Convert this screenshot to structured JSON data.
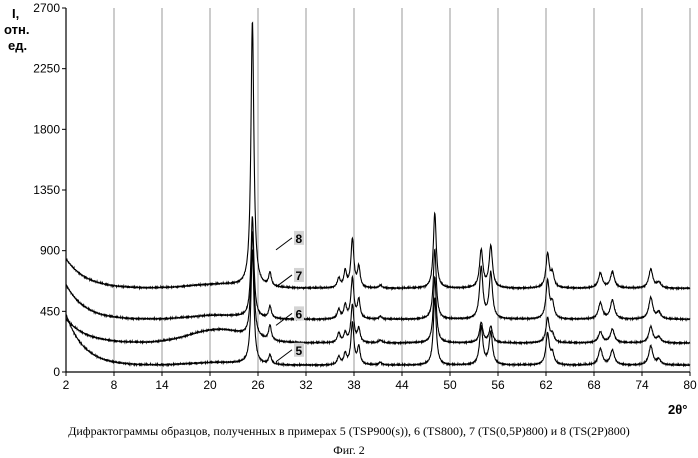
{
  "chart_data": {
    "type": "line",
    "title": "",
    "ylabel": [
      "I,",
      "отн.",
      "ед."
    ],
    "xlabel": "2θ°",
    "xlim": [
      2,
      80
    ],
    "ylim": [
      0,
      2700
    ],
    "x_ticks": [
      2,
      8,
      14,
      20,
      26,
      32,
      38,
      44,
      50,
      56,
      62,
      68,
      74,
      80
    ],
    "y_ticks": [
      0,
      450,
      900,
      1350,
      1800,
      2250,
      2700
    ],
    "grid": "vertical",
    "peaks": [
      {
        "x": 25.3,
        "width": 0.22
      },
      {
        "x": 27.5,
        "width": 0.2
      },
      {
        "x": 36.1,
        "width": 0.22
      },
      {
        "x": 36.9,
        "width": 0.2
      },
      {
        "x": 37.8,
        "width": 0.22
      },
      {
        "x": 38.6,
        "width": 0.2
      },
      {
        "x": 41.3,
        "width": 0.22
      },
      {
        "x": 48.1,
        "width": 0.22
      },
      {
        "x": 53.9,
        "width": 0.25
      },
      {
        "x": 55.1,
        "width": 0.25
      },
      {
        "x": 62.2,
        "width": 0.25
      },
      {
        "x": 62.8,
        "width": 0.25
      },
      {
        "x": 68.8,
        "width": 0.3
      },
      {
        "x": 70.3,
        "width": 0.3
      },
      {
        "x": 75.1,
        "width": 0.3
      },
      {
        "x": 76.1,
        "width": 0.3
      }
    ],
    "series": [
      {
        "name": "5",
        "baseline": 50,
        "low_angle": {
          "amp": 380,
          "decay": 2.2
        },
        "hump": {
          "center": 21,
          "width": 5,
          "amp": 20
        },
        "peak_heights": [
          850,
          70,
          60,
          80,
          310,
          130,
          20,
          500,
          280,
          240,
          230,
          80,
          120,
          110,
          140,
          40
        ]
      },
      {
        "name": "6",
        "baseline": 215,
        "low_angle": {
          "amp": 180,
          "decay": 2.5
        },
        "hump": {
          "center": 21,
          "width": 5,
          "amp": 100
        },
        "peak_heights": [
          780,
          110,
          70,
          70,
          280,
          100,
          20,
          490,
          150,
          120,
          180,
          60,
          80,
          100,
          120,
          40
        ]
      },
      {
        "name": "7",
        "baseline": 390,
        "low_angle": {
          "amp": 260,
          "decay": 2.3
        },
        "hump": {
          "center": 21,
          "width": 5,
          "amp": 30
        },
        "peak_heights": [
          750,
          90,
          70,
          100,
          300,
          140,
          20,
          520,
          380,
          340,
          280,
          110,
          120,
          140,
          160,
          50
        ]
      },
      {
        "name": "8",
        "baseline": 620,
        "low_angle": {
          "amp": 220,
          "decay": 2.5
        },
        "hump": {
          "center": 21,
          "width": 5,
          "amp": 30
        },
        "peak_heights": [
          1970,
          100,
          70,
          120,
          360,
          150,
          20,
          560,
          280,
          310,
          250,
          100,
          110,
          120,
          140,
          40
        ]
      }
    ],
    "series_labels": [
      {
        "name": "5",
        "x": 30.5,
        "y": 150
      },
      {
        "name": "6",
        "x": 30.5,
        "y": 420
      },
      {
        "name": "7",
        "x": 30.5,
        "y": 705
      },
      {
        "name": "8",
        "x": 30.5,
        "y": 980
      }
    ]
  },
  "caption": "Дифрактограммы образцов, полученных в примерах 5 (TSP900(s)), 6 (TS800), 7 (TS(0,5P)800) и 8 (TS(2P)800)",
  "figure_label": "Фиг. 2"
}
